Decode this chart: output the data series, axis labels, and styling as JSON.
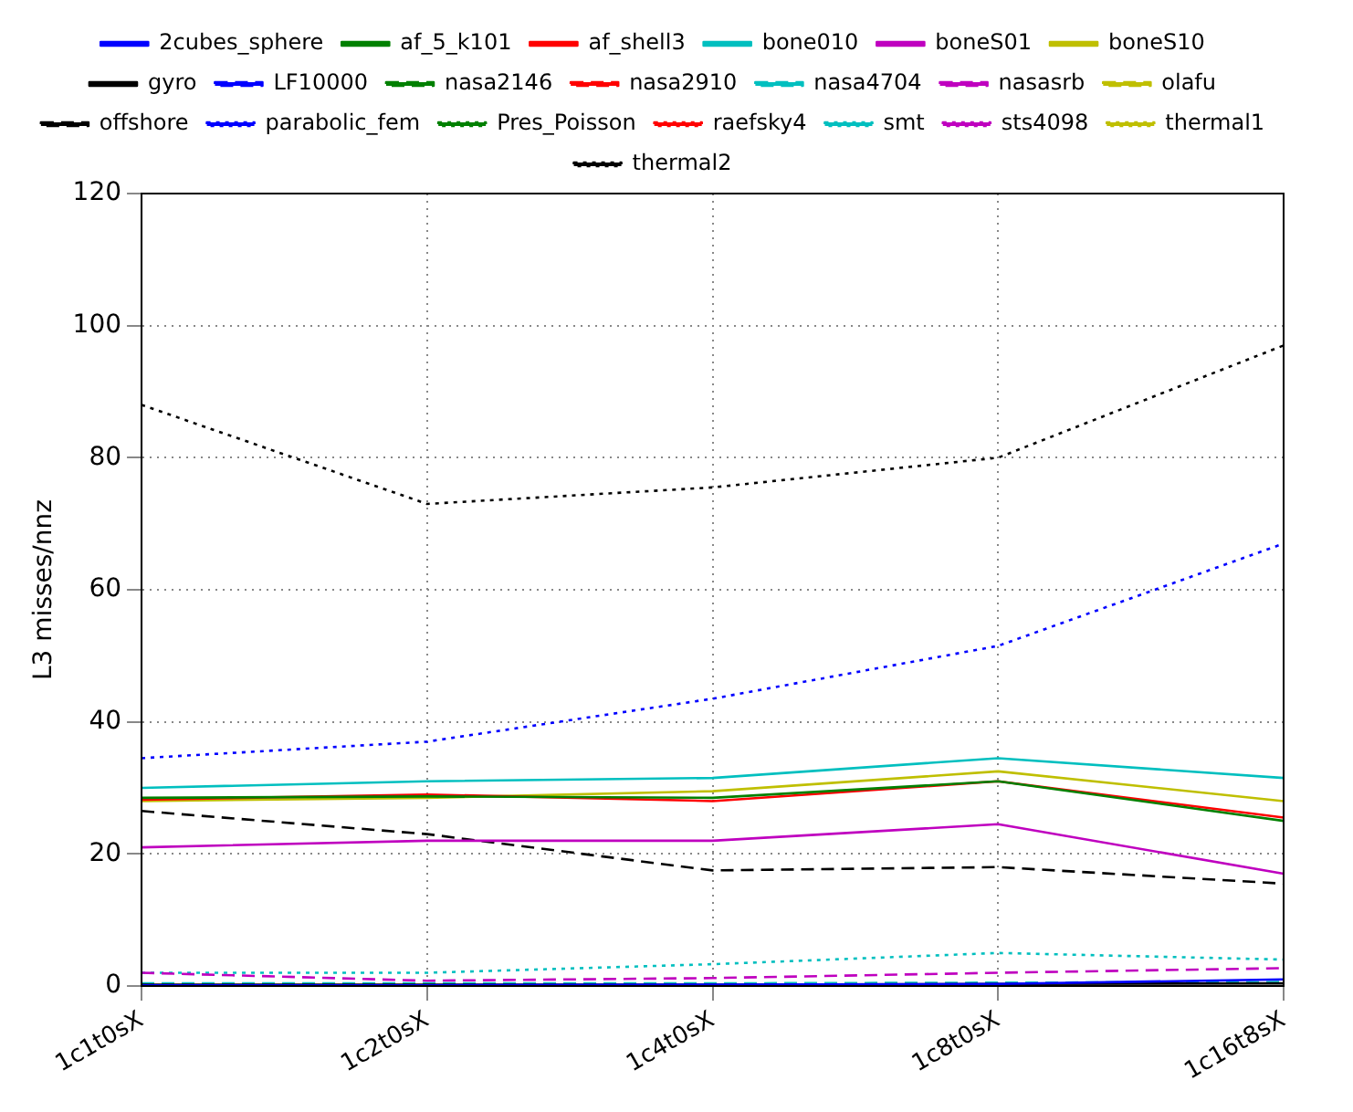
{
  "chart_data": {
    "type": "line",
    "ylabel": "L3 misses/nnz",
    "categories": [
      "1c1t0sX",
      "1c2t0sX",
      "1c4t0sX",
      "1c8t0sX",
      "1c16t8sX"
    ],
    "ylim": [
      0,
      120
    ],
    "yticks": [
      0,
      20,
      40,
      60,
      80,
      100,
      120
    ],
    "grid": true,
    "legend": "top",
    "marker": "none",
    "series": [
      {
        "name": "2cubes_sphere",
        "color": "#0000ff",
        "line_style": "solid",
        "values": [
          0.1,
          0.1,
          0.2,
          0.3,
          1
        ]
      },
      {
        "name": "af_5_k101",
        "color": "#008000",
        "line_style": "solid",
        "values": [
          28.5,
          28.7,
          28.5,
          31,
          25
        ]
      },
      {
        "name": "af_shell3",
        "color": "#ff0000",
        "line_style": "solid",
        "values": [
          28.2,
          29,
          28,
          31,
          25.5
        ]
      },
      {
        "name": "bone010",
        "color": "#00bfbf",
        "line_style": "solid",
        "values": [
          30,
          31,
          31.5,
          34.5,
          31.5
        ]
      },
      {
        "name": "boneS01",
        "color": "#bf00bf",
        "line_style": "solid",
        "values": [
          21,
          22,
          22,
          24.5,
          17
        ]
      },
      {
        "name": "boneS10",
        "color": "#bfbf00",
        "line_style": "solid",
        "values": [
          28,
          28.5,
          29.5,
          32.5,
          28
        ]
      },
      {
        "name": "gyro",
        "color": "#000000",
        "line_style": "solid",
        "values": [
          0.2,
          0.2,
          0.2,
          0.3,
          0.4
        ]
      },
      {
        "name": "LF10000",
        "color": "#0000ff",
        "line_style": "dashed",
        "values": [
          null,
          null,
          null,
          null,
          null
        ]
      },
      {
        "name": "nasa2146",
        "color": "#008000",
        "line_style": "dashed",
        "values": [
          null,
          null,
          null,
          null,
          null
        ]
      },
      {
        "name": "nasa2910",
        "color": "#ff0000",
        "line_style": "dashed",
        "values": [
          null,
          null,
          null,
          null,
          null
        ]
      },
      {
        "name": "nasa4704",
        "color": "#00bfbf",
        "line_style": "dashed",
        "values": [
          0.4,
          0.4,
          0.4,
          0.5,
          0.6
        ]
      },
      {
        "name": "nasasrb",
        "color": "#bf00bf",
        "line_style": "dashed",
        "values": [
          2,
          0.8,
          1.2,
          2,
          2.7
        ]
      },
      {
        "name": "olafu",
        "color": "#bfbf00",
        "line_style": "dashed",
        "values": [
          null,
          null,
          null,
          null,
          null
        ]
      },
      {
        "name": "offshore",
        "color": "#000000",
        "line_style": "dashed",
        "values": [
          26.5,
          23,
          17.5,
          18,
          15.5
        ]
      },
      {
        "name": "parabolic_fem",
        "color": "#0000ff",
        "line_style": "dotted",
        "values": [
          34.5,
          37,
          43.5,
          51.5,
          67
        ]
      },
      {
        "name": "Pres_Poisson",
        "color": "#008000",
        "line_style": "dotted",
        "values": [
          null,
          null,
          null,
          null,
          null
        ]
      },
      {
        "name": "raefsky4",
        "color": "#ff0000",
        "line_style": "dotted",
        "values": [
          null,
          null,
          null,
          null,
          null
        ]
      },
      {
        "name": "smt",
        "color": "#00bfbf",
        "line_style": "dotted",
        "values": [
          2,
          2,
          3.3,
          5,
          4
        ]
      },
      {
        "name": "sts4098",
        "color": "#bf00bf",
        "line_style": "dotted",
        "values": [
          null,
          null,
          null,
          null,
          null
        ]
      },
      {
        "name": "thermal1",
        "color": "#bfbf00",
        "line_style": "dotted",
        "values": [
          null,
          null,
          null,
          null,
          null
        ]
      },
      {
        "name": "thermal2",
        "color": "#000000",
        "line_style": "dotted",
        "values": [
          88,
          73,
          75.5,
          80,
          97
        ]
      }
    ]
  }
}
